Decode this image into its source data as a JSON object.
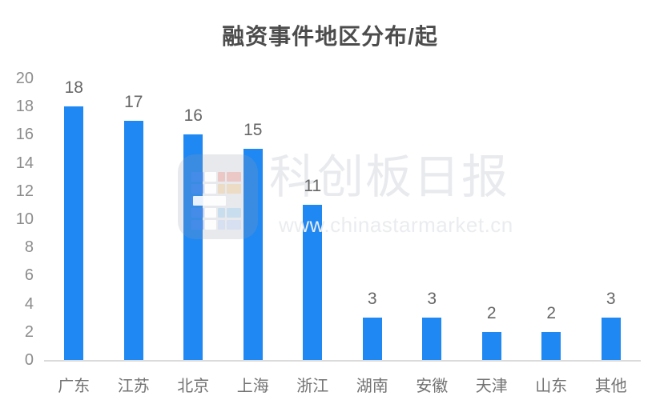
{
  "title": "融资事件地区分布/起",
  "watermark": {
    "brand": "科创板日报",
    "url": "www.chinastarmarket.cn"
  },
  "colors": {
    "bar": "#2088F2",
    "title_text": "#4C4C4C",
    "value_label": "#666666",
    "axis_tick": "#8C8C8C",
    "x_label": "#737373",
    "axis_line": "#DBDBDB",
    "watermark_text": "#E8EAEE"
  },
  "chart_data": {
    "type": "bar",
    "title": "融资事件地区分布/起",
    "categories": [
      "广东",
      "江苏",
      "北京",
      "上海",
      "浙江",
      "湖南",
      "安徽",
      "天津",
      "山东",
      "其他"
    ],
    "values": [
      18,
      17,
      16,
      15,
      11,
      3,
      3,
      2,
      2,
      3
    ],
    "value_labels": [
      "18",
      "17",
      "16",
      "15",
      "11",
      "3",
      "3",
      "2",
      "2",
      "3"
    ],
    "xlabel": "",
    "ylabel": "",
    "ylim": [
      0,
      20
    ],
    "yticks": [
      0,
      2,
      4,
      6,
      8,
      10,
      12,
      14,
      16,
      18,
      20
    ],
    "grid": false,
    "legend": false,
    "bar_color": "#2088F2"
  }
}
